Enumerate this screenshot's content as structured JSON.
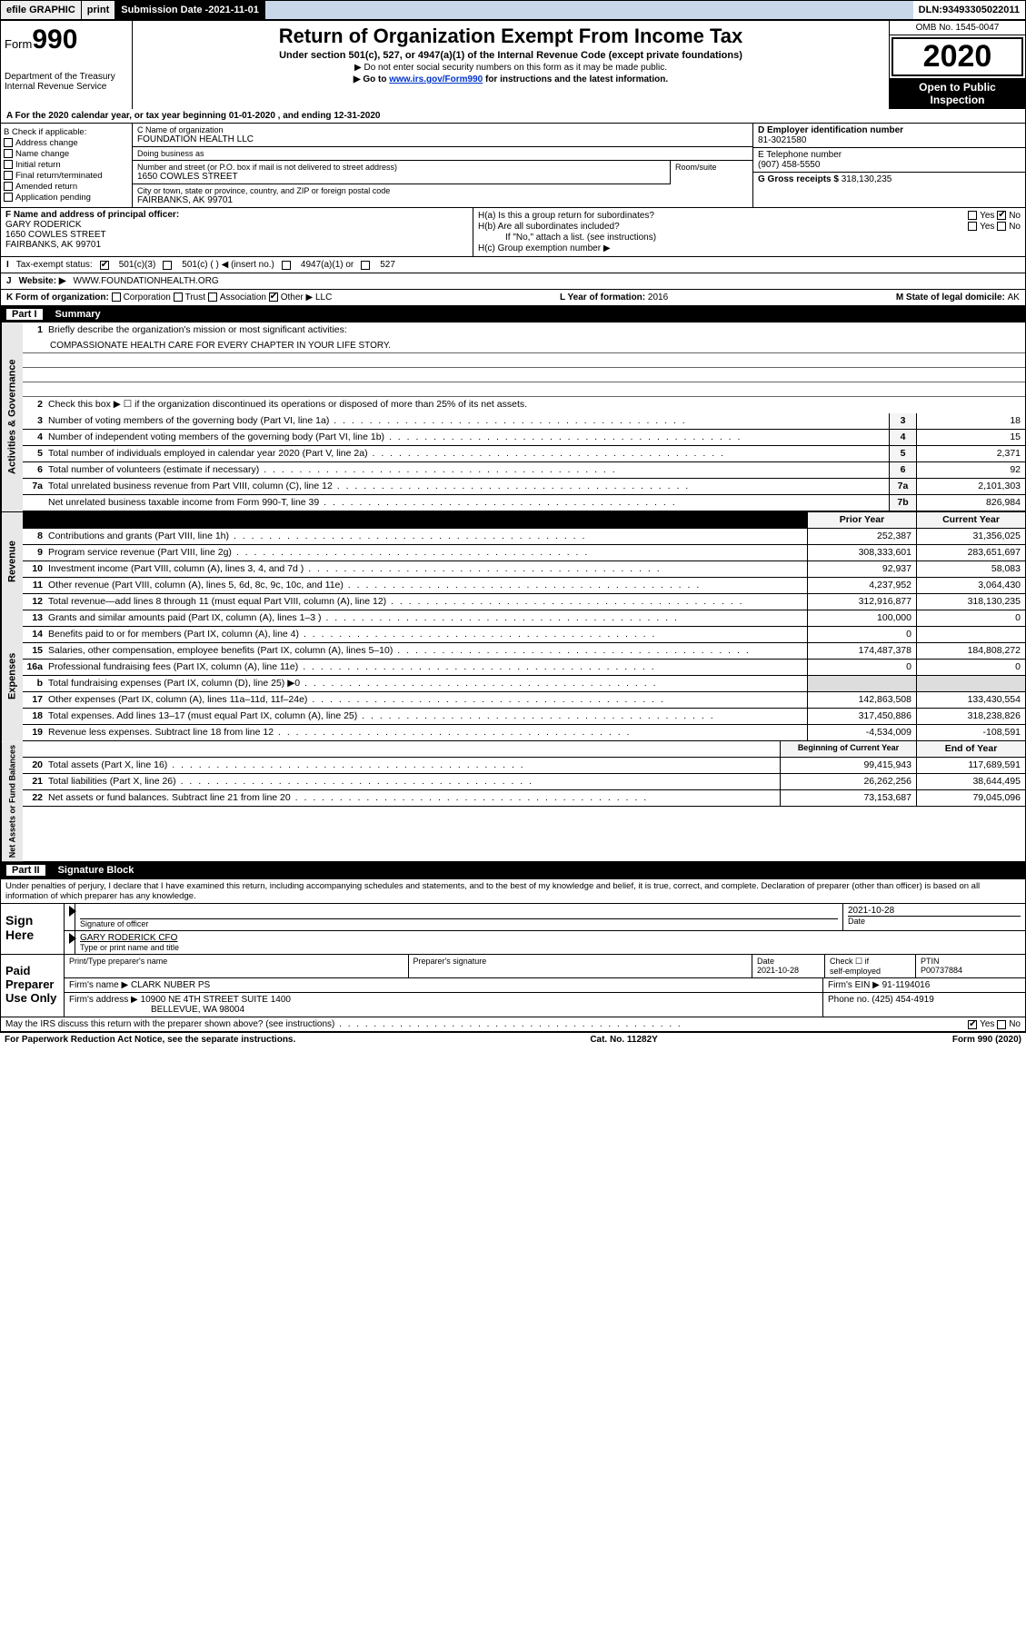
{
  "topbar": {
    "efile": "efile GRAPHIC",
    "print": "print",
    "sub_label": "Submission Date - ",
    "sub_date": "2021-11-01",
    "dln_label": "DLN: ",
    "dln": "93493305022011"
  },
  "header": {
    "form_prefix": "Form",
    "form_num": "990",
    "dept1": "Department of the Treasury",
    "dept2": "Internal Revenue Service",
    "title": "Return of Organization Exempt From Income Tax",
    "subtitle": "Under section 501(c), 527, or 4947(a)(1) of the Internal Revenue Code (except private foundations)",
    "note1": "▶ Do not enter social security numbers on this form as it may be made public.",
    "note2_pre": "▶ Go to ",
    "note2_link": "www.irs.gov/Form990",
    "note2_post": " for instructions and the latest information.",
    "omb": "OMB No. 1545-0047",
    "year": "2020",
    "open": "Open to Public Inspection"
  },
  "row_a": "A For the 2020 calendar year, or tax year beginning 01-01-2020    , and ending 12-31-2020",
  "b": {
    "lbl": "B Check if applicable:",
    "o1": "Address change",
    "o2": "Name change",
    "o3": "Initial return",
    "o4": "Final return/terminated",
    "o5": "Amended return",
    "o6": "Application pending"
  },
  "c": {
    "name_lbl": "C Name of organization",
    "name": "FOUNDATION HEALTH LLC",
    "dba_lbl": "Doing business as",
    "dba": "",
    "addr_lbl": "Number and street (or P.O. box if mail is not delivered to street address)",
    "room_lbl": "Room/suite",
    "addr": "1650 COWLES STREET",
    "city_lbl": "City or town, state or province, country, and ZIP or foreign postal code",
    "city": "FAIRBANKS, AK  99701"
  },
  "d": {
    "lbl": "D Employer identification number",
    "val": "81-3021580"
  },
  "e": {
    "lbl": "E Telephone number",
    "val": "(907) 458-5550"
  },
  "g": {
    "lbl": "G Gross receipts $ ",
    "val": "318,130,235"
  },
  "f": {
    "lbl": "F  Name and address of principal officer:",
    "name": "GARY RODERICK",
    "addr": "1650 COWLES STREET",
    "city": "FAIRBANKS, AK  99701"
  },
  "h": {
    "ha": "H(a)  Is this a group return for subordinates?",
    "hb": "H(b)  Are all subordinates included?",
    "hb_note": "If \"No,\" attach a list. (see instructions)",
    "hc": "H(c)  Group exemption number ▶"
  },
  "i": {
    "lbl": "Tax-exempt status:",
    "o1": "501(c)(3)",
    "o2": "501(c) (   ) ◀ (insert no.)",
    "o3": "4947(a)(1) or",
    "o4": "527"
  },
  "j": {
    "lbl": "Website: ▶",
    "val": "WWW.FOUNDATIONHEALTH.ORG"
  },
  "k": {
    "lbl": "K Form of organization:",
    "o1": "Corporation",
    "o2": "Trust",
    "o3": "Association",
    "o4": "Other ▶",
    "other": "LLC",
    "l_lbl": "L Year of formation: ",
    "l_val": "2016",
    "m_lbl": "M State of legal domicile: ",
    "m_val": "AK"
  },
  "part1": {
    "num": "Part I",
    "title": "Summary"
  },
  "summary": {
    "q1": "Briefly describe the organization's mission or most significant activities:",
    "mission": "COMPASSIONATE HEALTH CARE FOR EVERY CHAPTER IN YOUR LIFE STORY.",
    "q2": "Check this box ▶ ☐  if the organization discontinued its operations or disposed of more than 25% of its net assets.",
    "lines": [
      {
        "n": "3",
        "d": "Number of voting members of the governing body (Part VI, line 1a)",
        "box": "3",
        "v": "18"
      },
      {
        "n": "4",
        "d": "Number of independent voting members of the governing body (Part VI, line 1b)",
        "box": "4",
        "v": "15"
      },
      {
        "n": "5",
        "d": "Total number of individuals employed in calendar year 2020 (Part V, line 2a)",
        "box": "5",
        "v": "2,371"
      },
      {
        "n": "6",
        "d": "Total number of volunteers (estimate if necessary)",
        "box": "6",
        "v": "92"
      },
      {
        "n": "7a",
        "d": "Total unrelated business revenue from Part VIII, column (C), line 12",
        "box": "7a",
        "v": "2,101,303"
      },
      {
        "n": "",
        "d": "Net unrelated business taxable income from Form 990-T, line 39",
        "box": "7b",
        "v": "826,984"
      }
    ],
    "col_prior": "Prior Year",
    "col_curr": "Current Year",
    "rev": [
      {
        "n": "8",
        "d": "Contributions and grants (Part VIII, line 1h)",
        "p": "252,387",
        "c": "31,356,025"
      },
      {
        "n": "9",
        "d": "Program service revenue (Part VIII, line 2g)",
        "p": "308,333,601",
        "c": "283,651,697"
      },
      {
        "n": "10",
        "d": "Investment income (Part VIII, column (A), lines 3, 4, and 7d )",
        "p": "92,937",
        "c": "58,083"
      },
      {
        "n": "11",
        "d": "Other revenue (Part VIII, column (A), lines 5, 6d, 8c, 9c, 10c, and 11e)",
        "p": "4,237,952",
        "c": "3,064,430"
      },
      {
        "n": "12",
        "d": "Total revenue—add lines 8 through 11 (must equal Part VIII, column (A), line 12)",
        "p": "312,916,877",
        "c": "318,130,235"
      }
    ],
    "exp": [
      {
        "n": "13",
        "d": "Grants and similar amounts paid (Part IX, column (A), lines 1–3 )",
        "p": "100,000",
        "c": "0"
      },
      {
        "n": "14",
        "d": "Benefits paid to or for members (Part IX, column (A), line 4)",
        "p": "0",
        "c": ""
      },
      {
        "n": "15",
        "d": "Salaries, other compensation, employee benefits (Part IX, column (A), lines 5–10)",
        "p": "174,487,378",
        "c": "184,808,272"
      },
      {
        "n": "16a",
        "d": "Professional fundraising fees (Part IX, column (A), line 11e)",
        "p": "0",
        "c": "0"
      },
      {
        "n": "b",
        "d": "Total fundraising expenses (Part IX, column (D), line 25) ▶0",
        "p": "",
        "c": "",
        "grey": true
      },
      {
        "n": "17",
        "d": "Other expenses (Part IX, column (A), lines 11a–11d, 11f–24e)",
        "p": "142,863,508",
        "c": "133,430,554"
      },
      {
        "n": "18",
        "d": "Total expenses. Add lines 13–17 (must equal Part IX, column (A), line 25)",
        "p": "317,450,886",
        "c": "318,238,826"
      },
      {
        "n": "19",
        "d": "Revenue less expenses. Subtract line 18 from line 12",
        "p": "-4,534,009",
        "c": "-108,591"
      }
    ],
    "col_begin": "Beginning of Current Year",
    "col_end": "End of Year",
    "net": [
      {
        "n": "20",
        "d": "Total assets (Part X, line 16)",
        "p": "99,415,943",
        "c": "117,689,591"
      },
      {
        "n": "21",
        "d": "Total liabilities (Part X, line 26)",
        "p": "26,262,256",
        "c": "38,644,495"
      },
      {
        "n": "22",
        "d": "Net assets or fund balances. Subtract line 21 from line 20",
        "p": "73,153,687",
        "c": "79,045,096"
      }
    ]
  },
  "part2": {
    "num": "Part II",
    "title": "Signature Block"
  },
  "perjury": "Under penalties of perjury, I declare that I have examined this return, including accompanying schedules and statements, and to the best of my knowledge and belief, it is true, correct, and complete. Declaration of preparer (other than officer) is based on all information of which preparer has any knowledge.",
  "sign": {
    "lbl": "Sign Here",
    "sig_lbl": "Signature of officer",
    "date": "2021-10-28",
    "date_lbl": "Date",
    "name": "GARY RODERICK CFO",
    "name_lbl": "Type or print name and title"
  },
  "paid": {
    "lbl": "Paid Preparer Use Only",
    "h1": "Print/Type preparer's name",
    "h2": "Preparer's signature",
    "h3": "Date",
    "date": "2021-10-28",
    "h4_a": "Check ☐ if",
    "h4_b": "self-employed",
    "h5": "PTIN",
    "ptin": "P00737884",
    "firm_lbl": "Firm's name    ▶",
    "firm": "CLARK NUBER PS",
    "ein_lbl": "Firm's EIN ▶",
    "ein": "91-1194016",
    "addr_lbl": "Firm's address ▶",
    "addr1": "10900 NE 4TH STREET SUITE 1400",
    "addr2": "BELLEVUE, WA  98004",
    "phone_lbl": "Phone no. ",
    "phone": "(425) 454-4919"
  },
  "discuss": "May the IRS discuss this return with the preparer shown above? (see instructions)",
  "footer": {
    "l": "For Paperwork Reduction Act Notice, see the separate instructions.",
    "m": "Cat. No. 11282Y",
    "r": "Form 990 (2020)"
  },
  "yes": "Yes",
  "no": "No"
}
